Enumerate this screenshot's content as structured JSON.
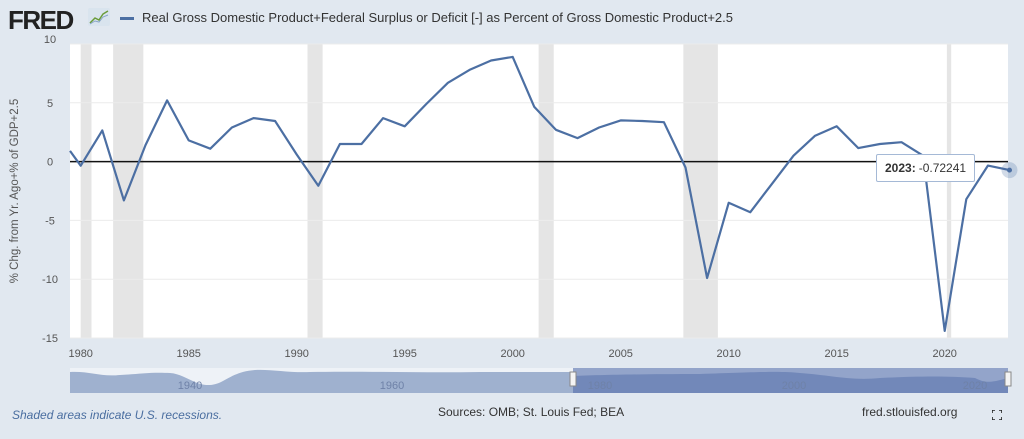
{
  "header": {
    "logo_text": "FRED",
    "legend_label": "Real Gross Domestic Product+Federal Surplus or Deficit [-] as Percent of Gross Domestic Product+2.5"
  },
  "footer": {
    "recession_note": "Shaded areas indicate U.S. recessions.",
    "sources": "Sources: OMB; St. Louis Fed; BEA",
    "site": "fred.stlouisfed.org"
  },
  "tooltip": {
    "year": "2023:",
    "value": "-0.72241"
  },
  "navigator": {
    "labels": [
      "1940",
      "1960",
      "1980",
      "2000",
      "2020"
    ]
  },
  "colors": {
    "line": "#4c6fa3",
    "recession": "#e5e5e5",
    "background": "#e1e8f0"
  },
  "chart_data": {
    "type": "line",
    "title": "",
    "xlabel": "",
    "ylabel": "% Chg. from Yr. Ago+% of GDP+2.5",
    "ylim": [
      -15,
      10
    ],
    "yticks": [
      "10",
      "5",
      "0",
      "-5",
      "-10",
      "-15"
    ],
    "xticks": [
      "1980",
      "1985",
      "1990",
      "1995",
      "2000",
      "2005",
      "2010",
      "2015",
      "2020"
    ],
    "series": [
      {
        "name": "Real Gross Domestic Product+Federal Surplus or Deficit [-] as Percent of Gross Domestic Product+2.5",
        "x": [
          1979,
          1980,
          1981,
          1982,
          1983,
          1984,
          1985,
          1986,
          1987,
          1988,
          1989,
          1990,
          1991,
          1992,
          1993,
          1994,
          1995,
          1996,
          1997,
          1998,
          1999,
          2000,
          2001,
          2002,
          2003,
          2004,
          2005,
          2006,
          2007,
          2008,
          2009,
          2010,
          2011,
          2012,
          2013,
          2014,
          2015,
          2016,
          2017,
          2018,
          2019,
          2020,
          2021,
          2022,
          2023
        ],
        "values": [
          2.2,
          -0.35,
          2.65,
          -3.3,
          1.4,
          5.2,
          1.8,
          1.1,
          2.9,
          3.7,
          3.45,
          0.6,
          -2.05,
          1.5,
          1.5,
          3.7,
          3.0,
          4.9,
          6.7,
          7.8,
          8.6,
          8.9,
          4.65,
          2.7,
          2.0,
          2.9,
          3.5,
          3.45,
          3.35,
          -0.5,
          -9.9,
          -3.5,
          -4.3,
          -1.9,
          0.5,
          2.2,
          3.0,
          1.15,
          1.5,
          1.65,
          0.5,
          -14.4,
          -3.2,
          -0.34,
          -0.72241
        ]
      }
    ],
    "recessions": [
      [
        1980.0,
        1980.5
      ],
      [
        1981.5,
        1982.9
      ],
      [
        1990.5,
        1991.2
      ],
      [
        2001.2,
        2001.9
      ],
      [
        2007.9,
        2009.5
      ],
      [
        2020.1,
        2020.3
      ]
    ],
    "grid": true,
    "legend": "top-left"
  }
}
